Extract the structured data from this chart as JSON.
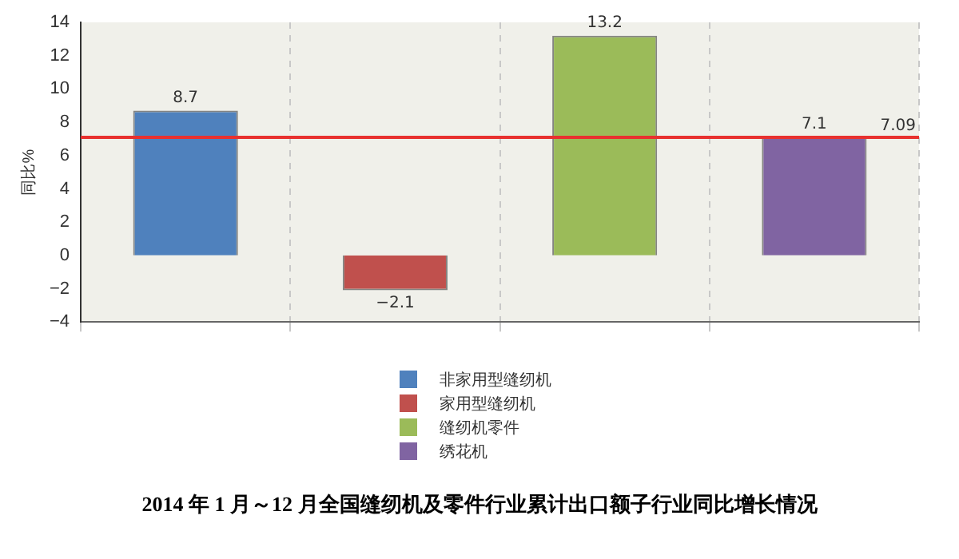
{
  "chart_data": {
    "type": "bar",
    "title": "2014 年 1 月～12 月全国缝纫机及零件行业累计出口额子行业同比增长情况",
    "ylabel": "同比%",
    "categories": [
      null,
      null,
      null,
      null
    ],
    "series": [
      {
        "name": "非家用型缝纫机",
        "color": "#4f81bd",
        "values": [
          8.7,
          null,
          null,
          null
        ]
      },
      {
        "name": "家用型缝纫机",
        "color": "#c0504d",
        "values": [
          null,
          -2.1,
          null,
          null
        ]
      },
      {
        "name": "缝纫机零件",
        "color": "#9bbb59",
        "values": [
          null,
          null,
          13.2,
          null
        ]
      },
      {
        "name": "绣花机",
        "color": "#8064a2",
        "values": [
          null,
          null,
          null,
          7.1
        ]
      }
    ],
    "ylim": [
      -4,
      14
    ],
    "yticks": [
      -4,
      -2,
      0,
      2,
      4,
      6,
      8,
      10,
      12,
      14
    ],
    "ref_lines": [
      {
        "axis": "y",
        "value": 7.09,
        "label": "7.09",
        "color": "#e8312f"
      }
    ],
    "data_labels": true,
    "grid": "x",
    "legend": "bottom"
  }
}
